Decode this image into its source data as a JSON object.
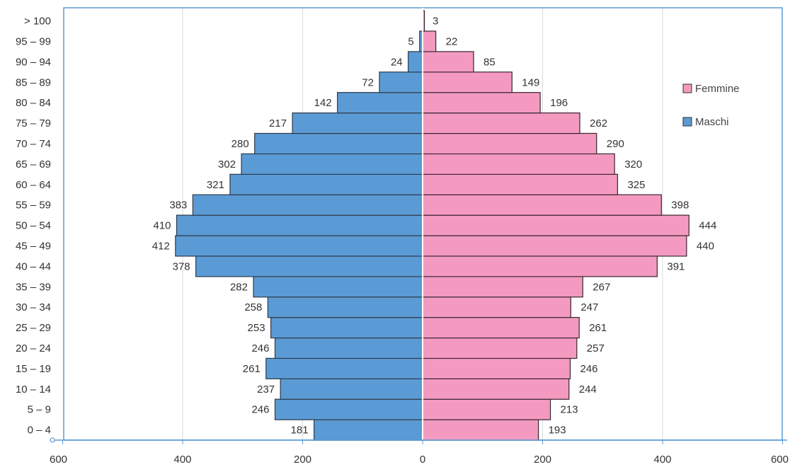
{
  "chart_data": {
    "type": "bar",
    "orientation": "horizontal",
    "layout": "population-pyramid",
    "categories": [
      "0 – 4",
      "5 – 9",
      "10 – 14",
      "15 – 19",
      "20 – 24",
      "25 – 29",
      "30 – 34",
      "35 – 39",
      "40 – 44",
      "45 – 49",
      "50 – 54",
      "55 – 59",
      "60 – 64",
      "65 – 69",
      "70 – 74",
      "75 – 79",
      "80 – 84",
      "85 – 89",
      "90 – 94",
      "95 – 99",
      "> 100"
    ],
    "series": [
      {
        "name": "Femmine",
        "side": "right",
        "color": "#f49ac1",
        "values": [
          193,
          213,
          244,
          246,
          257,
          261,
          247,
          267,
          391,
          440,
          444,
          398,
          325,
          320,
          290,
          262,
          196,
          149,
          85,
          22,
          3
        ]
      },
      {
        "name": "Maschi",
        "side": "left",
        "color": "#5b9bd5",
        "values": [
          181,
          246,
          237,
          261,
          246,
          253,
          258,
          282,
          378,
          412,
          410,
          383,
          321,
          302,
          280,
          217,
          142,
          72,
          24,
          5,
          0
        ]
      }
    ],
    "xlim": [
      -600,
      600
    ],
    "xticks": [
      {
        "value": -600,
        "label": "600"
      },
      {
        "value": -400,
        "label": "400"
      },
      {
        "value": -200,
        "label": "200"
      },
      {
        "value": 0,
        "label": "0"
      },
      {
        "value": 200,
        "label": "200"
      },
      {
        "value": 400,
        "label": "400"
      },
      {
        "value": 600,
        "label": "600"
      }
    ],
    "grid": "vertical",
    "legend_position": "right",
    "title": "",
    "xlabel": "",
    "ylabel": ""
  }
}
